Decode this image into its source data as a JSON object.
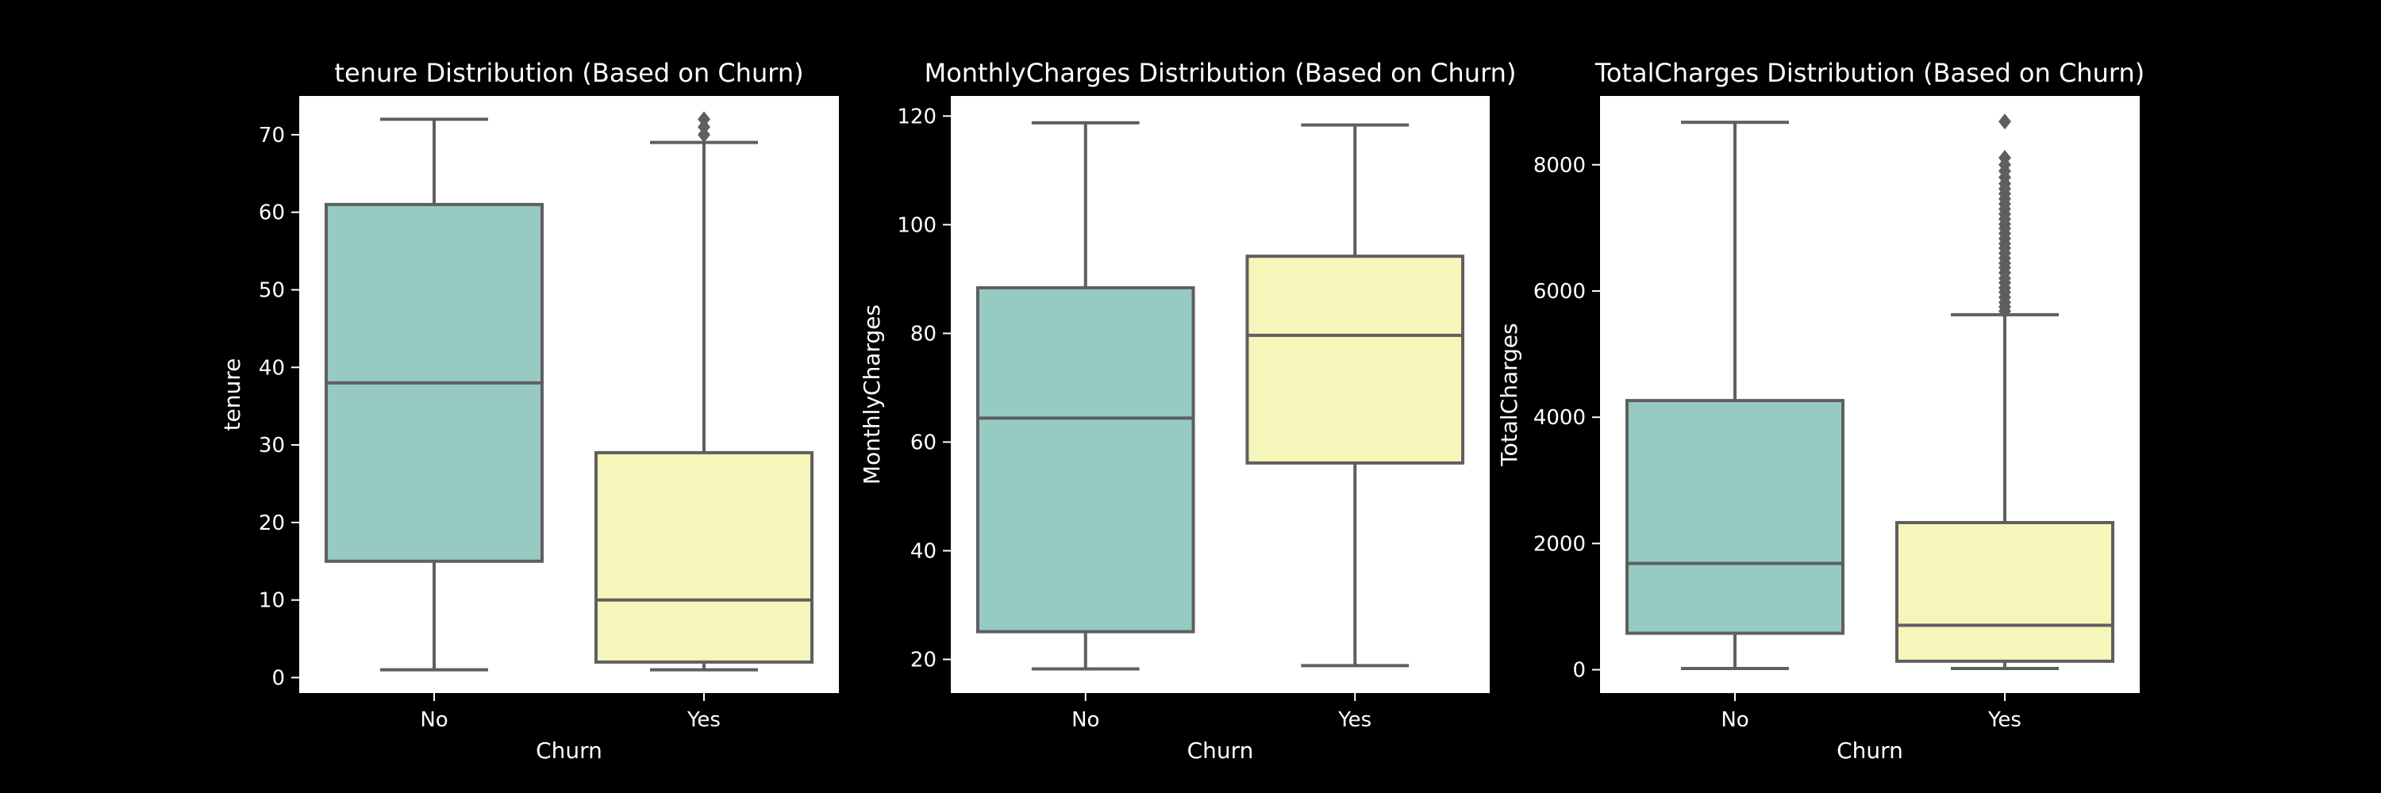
{
  "colors": {
    "background": "#000000",
    "plot_background": "#ffffff",
    "text": "#ffffff",
    "box_edge": "#5f5f5f",
    "category_colors": [
      "#96cac3",
      "#f6f6bb"
    ]
  },
  "chart_data": [
    {
      "type": "box",
      "title": "tenure Distribution (Based on Churn)",
      "xlabel": "Churn",
      "ylabel": "tenure",
      "categories": [
        "No",
        "Yes"
      ],
      "ylim": [
        -2,
        75
      ],
      "yticks": [
        0,
        10,
        20,
        30,
        40,
        50,
        60,
        70
      ],
      "grid": false,
      "legend": "none",
      "boxes": [
        {
          "category": "No",
          "whisker_low": 1,
          "q1": 15,
          "median": 38,
          "q3": 61,
          "whisker_high": 72,
          "outliers": []
        },
        {
          "category": "Yes",
          "whisker_low": 1,
          "q1": 2,
          "median": 10,
          "q3": 29,
          "whisker_high": 69,
          "outliers": [
            70,
            71,
            72
          ]
        }
      ]
    },
    {
      "type": "box",
      "title": "MonthlyCharges Distribution (Based on Churn)",
      "xlabel": "Churn",
      "ylabel": "MonthlyCharges",
      "categories": [
        "No",
        "Yes"
      ],
      "ylim": [
        13.8,
        123.7
      ],
      "yticks": [
        20,
        40,
        60,
        80,
        100,
        120
      ],
      "grid": false,
      "legend": "none",
      "boxes": [
        {
          "category": "No",
          "whisker_low": 18.25,
          "q1": 25.1,
          "median": 64.4,
          "q3": 88.4,
          "whisker_high": 118.75,
          "outliers": []
        },
        {
          "category": "Yes",
          "whisker_low": 18.85,
          "q1": 56.15,
          "median": 79.65,
          "q3": 94.2,
          "whisker_high": 118.35,
          "outliers": []
        }
      ]
    },
    {
      "type": "box",
      "title": "TotalCharges Distribution (Based on Churn)",
      "xlabel": "Churn",
      "ylabel": "TotalCharges",
      "categories": [
        "No",
        "Yes"
      ],
      "ylim": [
        -370,
        9090
      ],
      "yticks": [
        0,
        2000,
        4000,
        6000,
        8000
      ],
      "grid": false,
      "legend": "none",
      "boxes": [
        {
          "category": "No",
          "whisker_low": 18.8,
          "q1": 577.8,
          "median": 1683.6,
          "q3": 4264.1,
          "whisker_high": 8672.45,
          "outliers": []
        },
        {
          "category": "Yes",
          "whisker_low": 18.85,
          "q1": 134.5,
          "median": 703.55,
          "q3": 2331.3,
          "whisker_high": 5624.85,
          "outliers": [
            5680,
            5750,
            5820,
            5900,
            5980,
            6050,
            6130,
            6200,
            6290,
            6370,
            6440,
            6520,
            6600,
            6680,
            6750,
            6830,
            6910,
            6990,
            7060,
            7140,
            7220,
            7300,
            7380,
            7460,
            7540,
            7620,
            7700,
            7800,
            7900,
            8000,
            8110,
            8684.8
          ]
        }
      ]
    }
  ]
}
